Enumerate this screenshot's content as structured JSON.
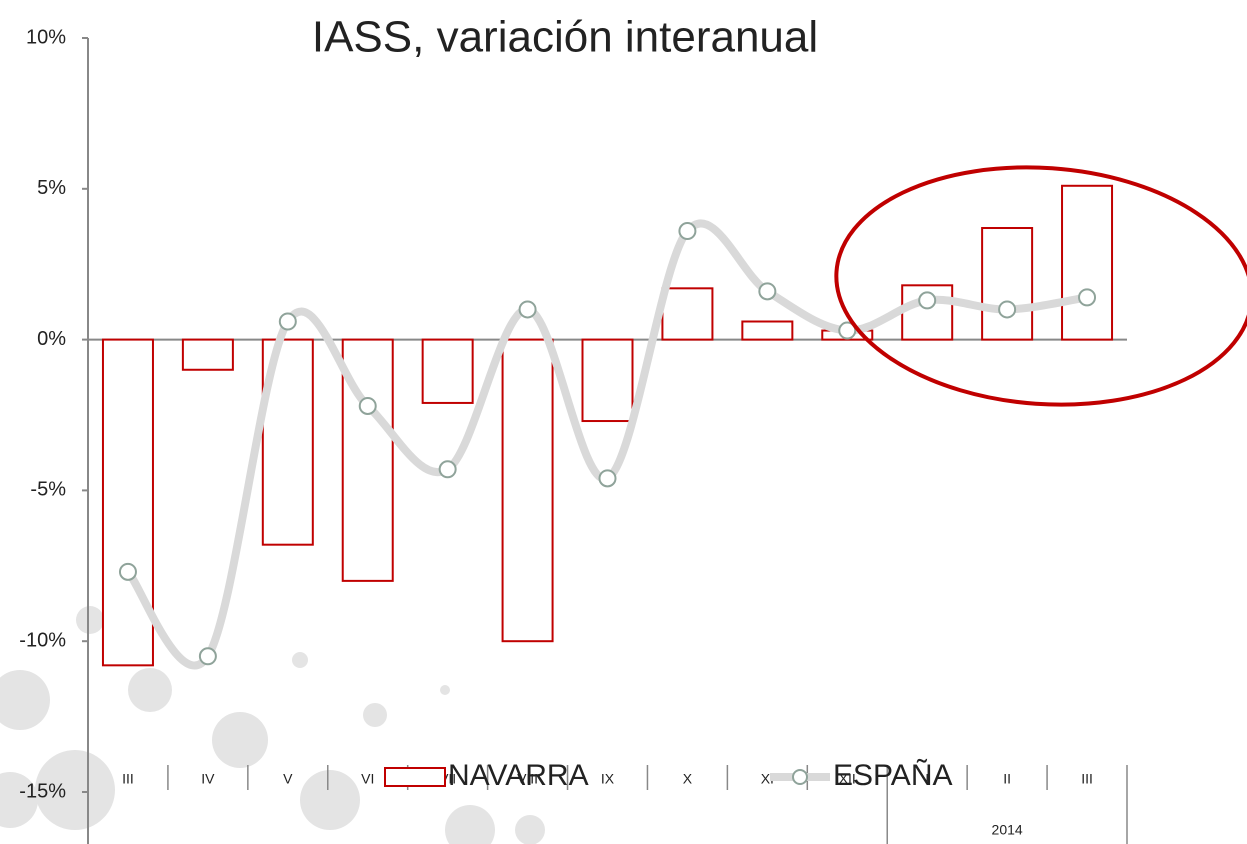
{
  "chart_data": {
    "type": "bar-line",
    "title": "IASS, variación interanual",
    "categories": [
      "III",
      "IV",
      "V",
      "VI",
      "VII",
      "VIII",
      "IX",
      "X",
      "XI",
      "XII",
      "I",
      "II",
      "III"
    ],
    "group_label": "2014",
    "series": [
      {
        "name": "NAVARRA",
        "type": "bar",
        "color": "#c00000",
        "values": [
          -10.8,
          -1.0,
          -6.8,
          -8.0,
          -2.1,
          -10.0,
          -2.7,
          1.7,
          0.6,
          0.3,
          1.8,
          3.7,
          5.1
        ]
      },
      {
        "name": "ESPAÑA",
        "type": "line",
        "color": "#d9d9d9",
        "values": [
          -7.7,
          -10.5,
          0.6,
          -2.2,
          -4.3,
          1.0,
          -4.6,
          3.6,
          1.6,
          0.3,
          1.3,
          1.0,
          1.4
        ]
      }
    ],
    "ylim": [
      -15,
      10
    ],
    "yticks": [
      {
        "value": -15,
        "label": "-15%"
      },
      {
        "value": -10,
        "label": "-10%"
      },
      {
        "value": -5,
        "label": "-5%"
      },
      {
        "value": 0,
        "label": "0%"
      },
      {
        "value": 5,
        "label": "5%"
      },
      {
        "value": 10,
        "label": "10%"
      }
    ]
  }
}
